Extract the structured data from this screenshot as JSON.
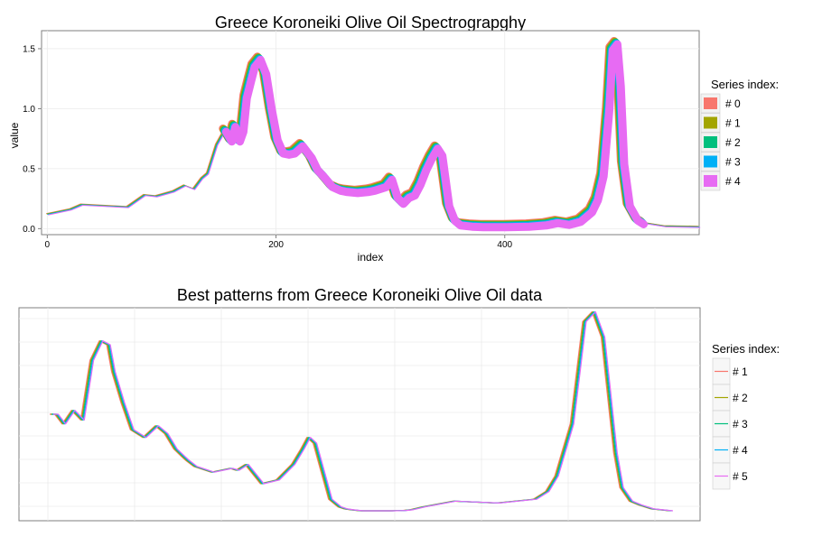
{
  "chart_data": [
    {
      "type": "line",
      "title": "Greece Koroneiki Olive Oil Spectrograpghy",
      "xlabel": "index",
      "ylabel": "value",
      "xlim": [
        -5,
        570
      ],
      "ylim": [
        -0.05,
        1.65
      ],
      "x_ticks": [
        0,
        200,
        400
      ],
      "y_ticks": [
        0.0,
        0.5,
        1.0,
        1.5
      ],
      "x_tick_labels": [
        "0",
        "200",
        "400"
      ],
      "y_tick_labels": [
        "0.0",
        "0.5",
        "1.0",
        "1.5"
      ],
      "grid": true,
      "legend": {
        "title": "Series index:",
        "position": "right",
        "style": "fill"
      },
      "highlight_range": [
        155,
        522
      ],
      "series": [
        {
          "name": "# 0",
          "color": "#F8766D"
        },
        {
          "name": "# 1",
          "color": "#A3A500"
        },
        {
          "name": "# 2",
          "color": "#00BF7D"
        },
        {
          "name": "# 3",
          "color": "#00B0F6"
        },
        {
          "name": "# 4",
          "color": "#E76BF3"
        }
      ],
      "x": [
        0,
        20,
        30,
        50,
        70,
        85,
        95,
        110,
        120,
        128,
        135,
        140,
        148,
        155,
        160,
        163,
        167,
        170,
        173,
        177,
        180,
        185,
        190,
        195,
        200,
        205,
        210,
        215,
        222,
        230,
        235,
        240,
        248,
        255,
        260,
        270,
        280,
        285,
        295,
        300,
        305,
        310,
        315,
        320,
        325,
        330,
        335,
        340,
        344,
        350,
        355,
        360,
        370,
        380,
        400,
        420,
        435,
        445,
        455,
        465,
        475,
        480,
        485,
        490,
        493,
        497,
        500,
        503,
        508,
        515,
        520,
        540,
        570
      ],
      "values": [
        0.12,
        0.16,
        0.2,
        0.19,
        0.18,
        0.28,
        0.27,
        0.31,
        0.36,
        0.33,
        0.42,
        0.46,
        0.7,
        0.82,
        0.74,
        0.86,
        0.74,
        0.82,
        1.1,
        1.25,
        1.36,
        1.42,
        1.3,
        1.0,
        0.75,
        0.64,
        0.63,
        0.64,
        0.7,
        0.6,
        0.5,
        0.45,
        0.36,
        0.33,
        0.32,
        0.31,
        0.32,
        0.33,
        0.36,
        0.42,
        0.27,
        0.22,
        0.27,
        0.29,
        0.38,
        0.5,
        0.6,
        0.68,
        0.62,
        0.2,
        0.08,
        0.04,
        0.03,
        0.025,
        0.025,
        0.03,
        0.04,
        0.06,
        0.045,
        0.07,
        0.15,
        0.25,
        0.45,
        1.0,
        1.5,
        1.55,
        1.2,
        0.55,
        0.2,
        0.08,
        0.05,
        0.02,
        0.015
      ]
    },
    {
      "type": "line",
      "title": "Best patterns from Greece Koroneiki Olive Oil data",
      "xlabel": "",
      "ylabel": "",
      "xlim": [
        0,
        1
      ],
      "ylim": [
        0,
        1
      ],
      "grid": true,
      "legend": {
        "title": "Series index:",
        "position": "right",
        "style": "line"
      },
      "series": [
        {
          "name": "# 1",
          "color": "#F8766D"
        },
        {
          "name": "# 2",
          "color": "#A3A500"
        },
        {
          "name": "# 3",
          "color": "#00BF7D"
        },
        {
          "name": "# 4",
          "color": "#00B0F6"
        },
        {
          "name": "# 5",
          "color": "#E76BF3"
        }
      ],
      "x": [
        0.0,
        0.008,
        0.02,
        0.035,
        0.05,
        0.065,
        0.08,
        0.092,
        0.1,
        0.115,
        0.13,
        0.15,
        0.17,
        0.185,
        0.2,
        0.213,
        0.22,
        0.232,
        0.26,
        0.29,
        0.3,
        0.315,
        0.34,
        0.365,
        0.39,
        0.405,
        0.415,
        0.425,
        0.45,
        0.465,
        0.475,
        0.485,
        0.5,
        0.515,
        0.53,
        0.55,
        0.56,
        0.57,
        0.58,
        0.6,
        0.65,
        0.72,
        0.78,
        0.8,
        0.815,
        0.84,
        0.86,
        0.875,
        0.89,
        0.9,
        0.91,
        0.92,
        0.935,
        0.95,
        0.97,
        1.0
      ],
      "values": [
        0.5,
        0.5,
        0.45,
        0.52,
        0.47,
        0.78,
        0.88,
        0.86,
        0.72,
        0.56,
        0.42,
        0.38,
        0.44,
        0.4,
        0.32,
        0.28,
        0.26,
        0.23,
        0.2,
        0.22,
        0.21,
        0.24,
        0.14,
        0.16,
        0.24,
        0.32,
        0.38,
        0.35,
        0.06,
        0.02,
        0.01,
        0.005,
        0.0,
        0.0,
        0.0,
        0.0,
        0.001,
        0.002,
        0.005,
        0.02,
        0.05,
        0.04,
        0.06,
        0.1,
        0.18,
        0.45,
        0.98,
        1.03,
        0.9,
        0.6,
        0.3,
        0.12,
        0.05,
        0.03,
        0.01,
        0.0
      ]
    }
  ]
}
